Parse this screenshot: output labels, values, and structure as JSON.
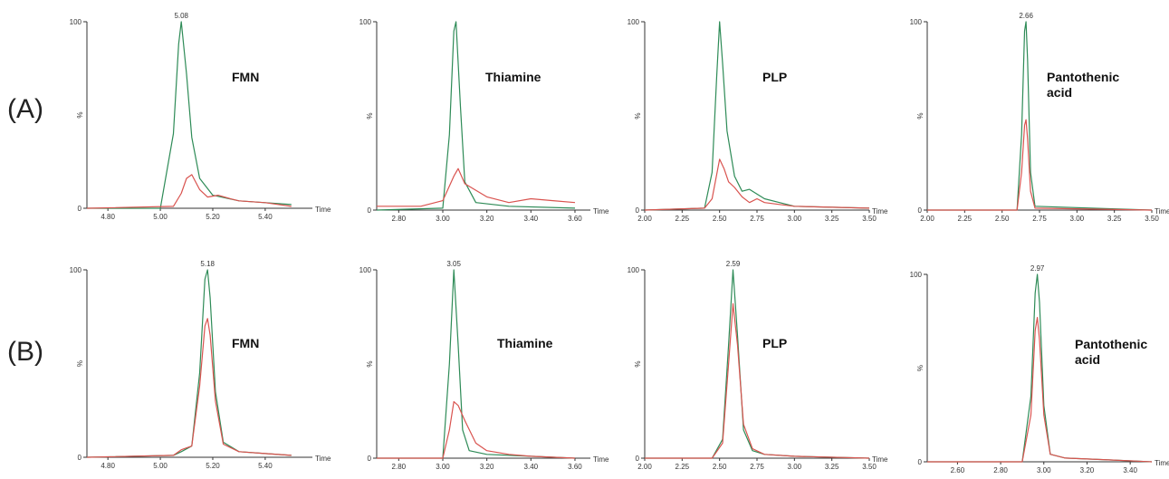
{
  "figure": {
    "row_labels": [
      "(A)",
      "(B)"
    ],
    "colors": {
      "green": "#2e8b57",
      "red": "#d9534f",
      "axis": "#333333"
    }
  },
  "chart_data": [
    {
      "type": "line",
      "row": "(A)",
      "annotation": "FMN",
      "peak_label": "5.08",
      "xlabel": "Time",
      "ylabel": "%",
      "xlim": [
        4.72,
        5.58
      ],
      "ylim": [
        0,
        100
      ],
      "xticks": [
        "4.80",
        "5.00",
        "5.20",
        "5.40"
      ],
      "yticks": [
        "0",
        "100"
      ],
      "series": [
        {
          "color": "#2e8b57",
          "x": [
            4.72,
            5.0,
            5.05,
            5.07,
            5.08,
            5.1,
            5.12,
            5.15,
            5.2,
            5.3,
            5.4,
            5.5
          ],
          "y": [
            0,
            0,
            40,
            88,
            100,
            72,
            38,
            16,
            7,
            4,
            3,
            2
          ]
        },
        {
          "color": "#d9534f",
          "x": [
            4.72,
            5.05,
            5.08,
            5.1,
            5.12,
            5.15,
            5.18,
            5.22,
            5.27,
            5.3,
            5.4,
            5.5
          ],
          "y": [
            0,
            1,
            8,
            16,
            18,
            10,
            6,
            7,
            5,
            4,
            3,
            1
          ]
        }
      ]
    },
    {
      "type": "line",
      "row": "(A)",
      "annotation": "Thiamine",
      "peak_label": "",
      "xlabel": "Time",
      "ylabel": "%",
      "xlim": [
        2.7,
        3.67
      ],
      "ylim": [
        0,
        100
      ],
      "xticks": [
        "2.80",
        "3.00",
        "3.20",
        "3.40",
        "3.60"
      ],
      "yticks": [
        "0",
        "100"
      ],
      "series": [
        {
          "color": "#2e8b57",
          "x": [
            2.7,
            3.0,
            3.03,
            3.05,
            3.06,
            3.08,
            3.1,
            3.15,
            3.3,
            3.6
          ],
          "y": [
            0,
            1,
            40,
            95,
            100,
            55,
            15,
            4,
            2,
            1
          ]
        },
        {
          "color": "#d9534f",
          "x": [
            2.7,
            2.9,
            3.0,
            3.05,
            3.07,
            3.1,
            3.2,
            3.3,
            3.4,
            3.5,
            3.6
          ],
          "y": [
            2,
            2,
            5,
            18,
            22,
            14,
            7,
            4,
            6,
            5,
            4
          ]
        }
      ]
    },
    {
      "type": "line",
      "row": "(A)",
      "annotation": "PLP",
      "peak_label": "",
      "xlabel": "Time",
      "ylabel": "%",
      "xlim": [
        2.0,
        3.5
      ],
      "ylim": [
        0,
        100
      ],
      "xticks": [
        "2.00",
        "2.25",
        "2.50",
        "2.75",
        "3.00",
        "3.25",
        "3.50"
      ],
      "yticks": [
        "0",
        "100"
      ],
      "series": [
        {
          "color": "#2e8b57",
          "x": [
            2.0,
            2.4,
            2.45,
            2.48,
            2.5,
            2.52,
            2.55,
            2.6,
            2.65,
            2.7,
            2.8,
            2.9,
            3.0,
            3.5
          ],
          "y": [
            0,
            1,
            20,
            70,
            100,
            78,
            42,
            18,
            10,
            11,
            6,
            4,
            2,
            1
          ]
        },
        {
          "color": "#d9534f",
          "x": [
            2.0,
            2.4,
            2.45,
            2.5,
            2.53,
            2.56,
            2.6,
            2.65,
            2.7,
            2.75,
            2.8,
            2.9,
            3.0,
            3.5
          ],
          "y": [
            0,
            1,
            6,
            27,
            22,
            15,
            12,
            7,
            4,
            6,
            4,
            3,
            2,
            1
          ]
        }
      ]
    },
    {
      "type": "line",
      "row": "(A)",
      "annotation": "Pantothenic acid",
      "peak_label": "2.66",
      "xlabel": "Time",
      "ylabel": "%",
      "xlim": [
        2.0,
        3.5
      ],
      "ylim": [
        0,
        100
      ],
      "xticks": [
        "2.00",
        "2.25",
        "2.50",
        "2.75",
        "3.00",
        "3.25",
        "3.50"
      ],
      "yticks": [
        "0",
        "100"
      ],
      "series": [
        {
          "color": "#2e8b57",
          "x": [
            2.0,
            2.6,
            2.63,
            2.65,
            2.66,
            2.67,
            2.69,
            2.72,
            3.5
          ],
          "y": [
            0,
            0,
            40,
            95,
            100,
            80,
            20,
            2,
            0
          ]
        },
        {
          "color": "#d9534f",
          "x": [
            2.0,
            2.6,
            2.63,
            2.65,
            2.66,
            2.67,
            2.69,
            2.72,
            3.5
          ],
          "y": [
            0,
            0,
            20,
            45,
            48,
            38,
            10,
            1,
            0
          ]
        }
      ]
    },
    {
      "type": "line",
      "row": "(B)",
      "annotation": "FMN",
      "peak_label": "5.18",
      "xlabel": "Time",
      "ylabel": "%",
      "xlim": [
        4.72,
        5.58
      ],
      "ylim": [
        0,
        100
      ],
      "xticks": [
        "4.80",
        "5.00",
        "5.20",
        "5.40"
      ],
      "yticks": [
        "0",
        "100"
      ],
      "series": [
        {
          "color": "#2e8b57",
          "x": [
            4.72,
            5.05,
            5.08,
            5.12,
            5.15,
            5.17,
            5.18,
            5.19,
            5.21,
            5.24,
            5.3,
            5.4,
            5.5
          ],
          "y": [
            0,
            1,
            3,
            6,
            45,
            95,
            100,
            85,
            35,
            8,
            3,
            2,
            1
          ]
        },
        {
          "color": "#d9534f",
          "x": [
            4.72,
            5.05,
            5.08,
            5.12,
            5.15,
            5.17,
            5.18,
            5.19,
            5.21,
            5.24,
            5.3,
            5.4,
            5.5
          ],
          "y": [
            0,
            1,
            4,
            6,
            38,
            70,
            74,
            65,
            30,
            7,
            3,
            2,
            1
          ]
        }
      ]
    },
    {
      "type": "line",
      "row": "(B)",
      "annotation": "Thiamine",
      "peak_label": "3.05",
      "xlabel": "Time",
      "ylabel": "%",
      "xlim": [
        2.7,
        3.67
      ],
      "ylim": [
        0,
        100
      ],
      "xticks": [
        "2.80",
        "3.00",
        "3.20",
        "3.40",
        "3.60"
      ],
      "yticks": [
        "0",
        "100"
      ],
      "series": [
        {
          "color": "#2e8b57",
          "x": [
            2.7,
            3.0,
            3.03,
            3.05,
            3.07,
            3.09,
            3.12,
            3.2,
            3.4,
            3.6
          ],
          "y": [
            0,
            0,
            50,
            100,
            60,
            15,
            4,
            2,
            1,
            0
          ]
        },
        {
          "color": "#d9534f",
          "x": [
            2.7,
            3.0,
            3.03,
            3.05,
            3.07,
            3.1,
            3.15,
            3.2,
            3.3,
            3.4,
            3.6
          ],
          "y": [
            0,
            0,
            15,
            30,
            28,
            20,
            8,
            4,
            2,
            1,
            0
          ]
        }
      ]
    },
    {
      "type": "line",
      "row": "(B)",
      "annotation": "PLP",
      "peak_label": "2.59",
      "xlabel": "Time",
      "ylabel": "%",
      "xlim": [
        2.0,
        3.5
      ],
      "ylim": [
        0,
        100
      ],
      "xticks": [
        "2.00",
        "2.25",
        "2.50",
        "2.75",
        "3.00",
        "3.25",
        "3.50"
      ],
      "yticks": [
        "0",
        "100"
      ],
      "series": [
        {
          "color": "#2e8b57",
          "x": [
            2.0,
            2.45,
            2.52,
            2.56,
            2.59,
            2.62,
            2.66,
            2.72,
            2.8,
            3.0,
            3.5
          ],
          "y": [
            0,
            0,
            10,
            60,
            100,
            65,
            15,
            4,
            2,
            1,
            0
          ]
        },
        {
          "color": "#d9534f",
          "x": [
            2.0,
            2.45,
            2.52,
            2.56,
            2.59,
            2.62,
            2.66,
            2.72,
            2.8,
            3.0,
            3.5
          ],
          "y": [
            0,
            0,
            8,
            50,
            82,
            60,
            18,
            5,
            2,
            1,
            0
          ]
        }
      ]
    },
    {
      "type": "line",
      "row": "(B)",
      "annotation": "Pantothenic acid",
      "peak_label": "2.97",
      "xlabel": "Time",
      "ylabel": "%",
      "xlim": [
        2.46,
        3.5
      ],
      "ylim": [
        0,
        100
      ],
      "xticks": [
        "2.60",
        "2.80",
        "3.00",
        "3.20",
        "3.40"
      ],
      "yticks": [
        "0",
        "100"
      ],
      "series": [
        {
          "color": "#2e8b57",
          "x": [
            2.46,
            2.9,
            2.94,
            2.96,
            2.97,
            2.98,
            3.0,
            3.03,
            3.1,
            3.3,
            3.5
          ],
          "y": [
            0,
            0,
            35,
            90,
            100,
            85,
            30,
            4,
            2,
            1,
            0
          ]
        },
        {
          "color": "#d9534f",
          "x": [
            2.46,
            2.9,
            2.94,
            2.96,
            2.97,
            2.98,
            3.0,
            3.03,
            3.1,
            3.3,
            3.5
          ],
          "y": [
            0,
            0,
            25,
            70,
            77,
            65,
            25,
            4,
            2,
            1,
            0
          ]
        }
      ]
    }
  ]
}
